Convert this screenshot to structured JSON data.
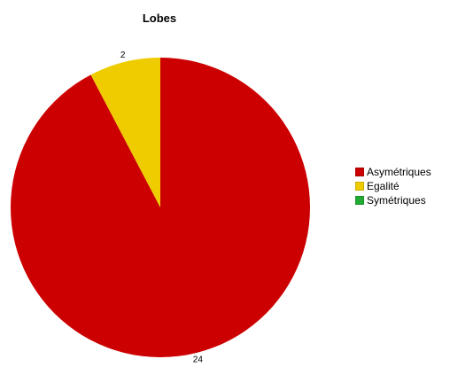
{
  "chart_data": {
    "type": "pie",
    "title": "Lobes",
    "categories": [
      "Asymétriques",
      "Egalité",
      "Symétriques"
    ],
    "values": [
      24,
      2,
      0
    ],
    "data_labels": [
      "24",
      "2",
      ""
    ],
    "colors": [
      "#cc0000",
      "#eecc00",
      "#22aa33"
    ],
    "legend_position": "right"
  }
}
